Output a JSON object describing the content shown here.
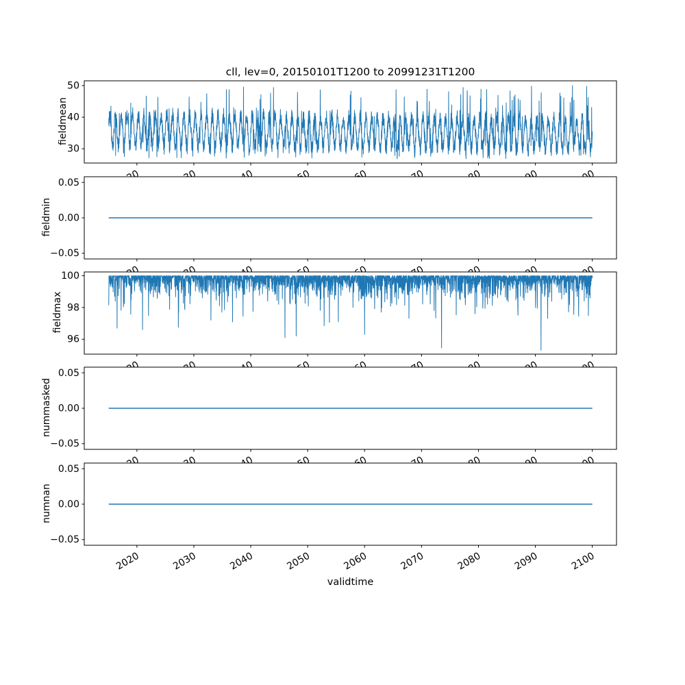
{
  "chart_data": {
    "type": "line",
    "title": "cll, lev=0, 20150101T1200 to 20991231T1200",
    "xlabel": "validtime",
    "line_color": "#1f77b4",
    "background_color": "#ffffff",
    "x_range": [
      2015.04,
      2100.0
    ],
    "xlim": [
      2010.75,
      2104.25
    ],
    "xticks": [
      2020,
      2030,
      2040,
      2050,
      2060,
      2070,
      2080,
      2090,
      2100
    ],
    "grid": false,
    "legend": "none",
    "subplots": [
      {
        "ylabel": "fieldmean",
        "yticks": [
          "30",
          "40",
          "50"
        ],
        "ytick_values": [
          30,
          40,
          50
        ],
        "ylim": [
          25.5,
          51.5
        ],
        "series": {
          "kind": "noisy-seasonal",
          "n": 3000,
          "base": 36.0,
          "trend": -1.4,
          "seasonal_amp": 4.8,
          "noise_amp": 2.4,
          "spike_prob": 0.03,
          "min": 26.8,
          "max": 50.0,
          "seed": 42
        },
        "summary": {
          "approx_mean": 35,
          "approx_min": 27,
          "approx_max": 50,
          "description": "dense annual oscillation between ~27 and ~50 around mean ~35"
        }
      },
      {
        "ylabel": "fieldmin",
        "yticks": [
          "−0.05",
          "0.00",
          "0.05"
        ],
        "ytick_values": [
          -0.05,
          0,
          0.05
        ],
        "ylim": [
          -0.058,
          0.058
        ],
        "series": {
          "kind": "constant",
          "value": 0
        },
        "summary": {
          "constant_value": 0,
          "description": "flat line at 0.00"
        }
      },
      {
        "ylabel": "fieldmax",
        "yticks": [
          "96",
          "98",
          "100"
        ],
        "ytick_values": [
          96,
          98,
          100
        ],
        "ylim": [
          95.06,
          100.24
        ],
        "series": {
          "kind": "baseline-dips",
          "n": 3000,
          "base": 100,
          "dip_scale": 0.45,
          "dip_offset": 0.15,
          "max_dip": 4.2,
          "seed": 7,
          "notable_dips": [
            [
              2016.5,
              96.7
            ],
            [
              2021.0,
              96.6
            ],
            [
              2033.0,
              97.2
            ],
            [
              2046.0,
              96.1
            ],
            [
              2048.0,
              96.2
            ],
            [
              2060.0,
              96.3
            ],
            [
              2073.5,
              95.45
            ],
            [
              2091.0,
              95.3
            ]
          ]
        },
        "summary": {
          "baseline": 100,
          "deepest_dip": 95.3,
          "description": "saturated near 100 with frequent downward spikes, deepest ~95.3 near 2091"
        }
      },
      {
        "ylabel": "nummasked",
        "yticks": [
          "−0.05",
          "0.00",
          "0.05"
        ],
        "ytick_values": [
          -0.05,
          0,
          0.05
        ],
        "ylim": [
          -0.058,
          0.058
        ],
        "series": {
          "kind": "constant",
          "value": 0
        },
        "summary": {
          "constant_value": 0,
          "description": "flat line at 0.00"
        }
      },
      {
        "ylabel": "numnan",
        "yticks": [
          "−0.05",
          "0.00",
          "0.05"
        ],
        "ytick_values": [
          -0.05,
          0,
          0.05
        ],
        "ylim": [
          -0.058,
          0.058
        ],
        "series": {
          "kind": "constant",
          "value": 0
        },
        "summary": {
          "constant_value": 0,
          "description": "flat line at 0.00"
        }
      }
    ]
  }
}
